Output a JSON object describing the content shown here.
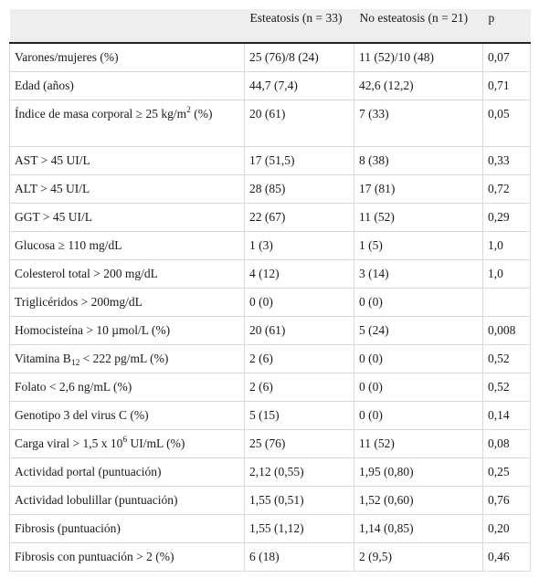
{
  "table": {
    "headers": [
      "",
      "Esteatosis (n = 33)",
      "No esteatosis (n = 21)",
      "p"
    ],
    "rows": [
      {
        "label": "Varones/mujeres (%)",
        "esteatosis": "25 (76)/8 (24)",
        "no_esteatosis": "11 (52)/10 (48)",
        "p": "0,07"
      },
      {
        "label": "Edad (años)",
        "esteatosis": "44,7 (7,4)",
        "no_esteatosis": "42,6 (12,2)",
        "p": "0,71"
      },
      {
        "label": "Índice de masa corporal ≥ 25 kg/m",
        "label_sup": "2",
        "label_after": " (%)",
        "esteatosis": "20 (61)",
        "no_esteatosis": "7 (33)",
        "p": "0,05"
      },
      {
        "label": "AST > 45 UI/L",
        "esteatosis": "17 (51,5)",
        "no_esteatosis": "8 (38)",
        "p": "0,33"
      },
      {
        "label": "ALT > 45 UI/L",
        "esteatosis": "28 (85)",
        "no_esteatosis": "17 (81)",
        "p": "0,72"
      },
      {
        "label": "GGT > 45 UI/L",
        "esteatosis": "22 (67)",
        "no_esteatosis": "11 (52)",
        "p": "0,29"
      },
      {
        "label": "Glucosa ≥ 110 mg/dL",
        "esteatosis": "1 (3)",
        "no_esteatosis": "1 (5)",
        "p": "1,0"
      },
      {
        "label": "Colesterol total > 200 mg/dL",
        "esteatosis": "4 (12)",
        "no_esteatosis": "3 (14)",
        "p": "1,0"
      },
      {
        "label": "Triglicéridos > 200mg/dL",
        "esteatosis": "0 (0)",
        "no_esteatosis": "0 (0)",
        "p": ""
      },
      {
        "label": "Homocisteína > 10 µmol/L (%)",
        "esteatosis": "20 (61)",
        "no_esteatosis": "5 (24)",
        "p": "0,008"
      },
      {
        "label": "Vitamina B",
        "label_sub": "12",
        "label_after": " < 222 pg/mL (%)",
        "esteatosis": "2 (6)",
        "no_esteatosis": "0 (0)",
        "p": "0,52"
      },
      {
        "label": "Folato < 2,6 ng/mL (%)",
        "esteatosis": "2 (6)",
        "no_esteatosis": "0 (0)",
        "p": "0,52"
      },
      {
        "label": "Genotipo 3 del virus C (%)",
        "esteatosis": "5 (15)",
        "no_esteatosis": "0 (0)",
        "p": "0,14"
      },
      {
        "label": "Carga viral > 1,5 x 10",
        "label_sup": "6",
        "label_after": " UI/mL (%)",
        "esteatosis": "25 (76)",
        "no_esteatosis": "11 (52)",
        "p": "0,08"
      },
      {
        "label": "Actividad portal (puntuación)",
        "esteatosis": "2,12 (0,55)",
        "no_esteatosis": "1,95 (0,80)",
        "p": "0,25"
      },
      {
        "label": "Actividad lobulillar (puntuación)",
        "esteatosis": "1,55 (0,51)",
        "no_esteatosis": "1,52 (0,60)",
        "p": "0,76"
      },
      {
        "label": "Fibrosis (puntuación)",
        "esteatosis": "1,55 (1,12)",
        "no_esteatosis": "1,14 (0,85)",
        "p": "0,20"
      },
      {
        "label": "Fibrosis con puntuación > 2 (%)",
        "esteatosis": "6 (18)",
        "no_esteatosis": "2 (9,5)",
        "p": "0,46"
      }
    ]
  }
}
